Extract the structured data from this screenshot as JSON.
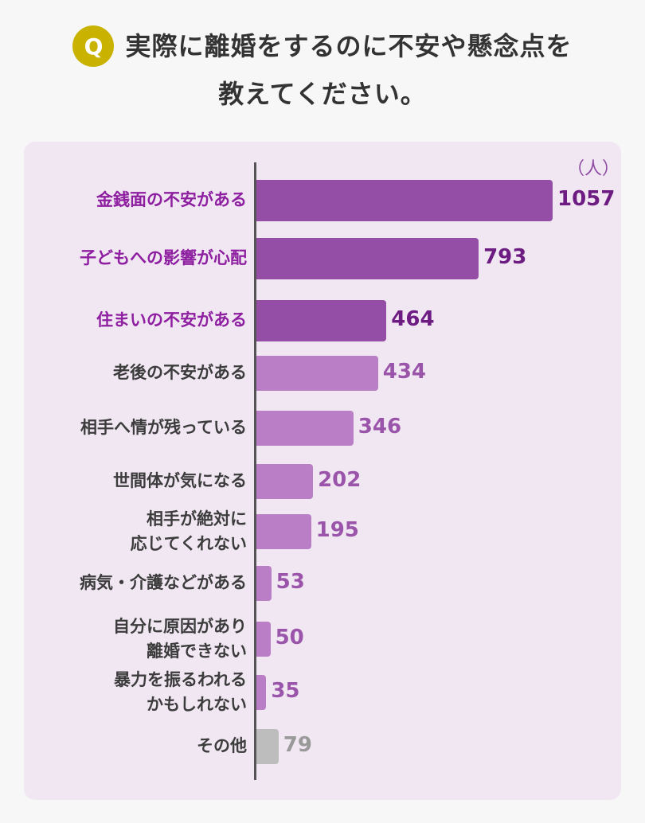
{
  "question": {
    "badge": "Q",
    "line1": "実際に離婚をするのに不安や懸念点を",
    "line2": "教えてください。"
  },
  "chart_data": {
    "type": "bar",
    "orientation": "horizontal",
    "unit": "（人）",
    "categories": [
      "金銭面の不安がある",
      "子どもへの影響が心配",
      "住まいの不安がある",
      "老後の不安がある",
      "相手へ情が残っている",
      "世間体が気になる",
      "相手が絶対に\n応じてくれない",
      "病気・介護などがある",
      "自分に原因があり\n離婚できない",
      "暴力を振るわれる\nかもしれない",
      "その他"
    ],
    "values": [
      1057,
      793,
      464,
      434,
      346,
      202,
      195,
      53,
      50,
      35,
      79
    ],
    "value_labels": [
      "1057",
      "793",
      "464",
      "434",
      "346",
      "202",
      "195",
      "53",
      "50",
      "35",
      "79"
    ],
    "highlighted": [
      true,
      true,
      true,
      false,
      false,
      false,
      false,
      false,
      false,
      false,
      false
    ],
    "colors": {
      "highlight_bar": "#944ea6",
      "normal_bar": "#b97ec5",
      "other_bar": "#bdbdbd",
      "highlight_label": "#8d1fa0",
      "normal_label": "#3c3c3c",
      "highlight_value": "#6d1d82",
      "normal_value": "#9a55aa",
      "other_value": "#999999"
    }
  }
}
